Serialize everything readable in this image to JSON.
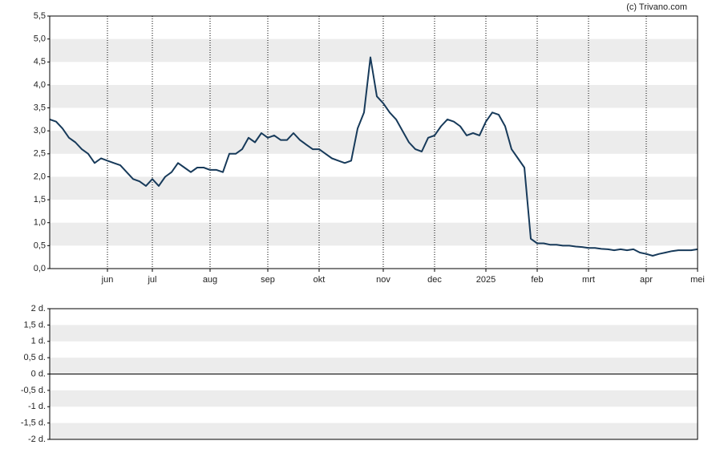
{
  "chart_data": [
    {
      "type": "line",
      "source": "(c) Trivano.com",
      "categories": [
        null,
        null,
        null,
        null,
        null,
        null,
        null,
        null,
        null,
        "jun",
        null,
        null,
        null,
        null,
        null,
        null,
        "jul",
        null,
        null,
        null,
        null,
        null,
        null,
        null,
        null,
        "aug",
        null,
        null,
        null,
        null,
        null,
        null,
        null,
        null,
        "sep",
        null,
        null,
        null,
        null,
        null,
        null,
        null,
        "okt",
        null,
        null,
        null,
        null,
        null,
        null,
        null,
        null,
        null,
        "nov",
        null,
        null,
        null,
        null,
        null,
        null,
        null,
        "dec",
        null,
        null,
        null,
        null,
        null,
        null,
        null,
        "2025",
        null,
        null,
        null,
        null,
        null,
        null,
        null,
        "feb",
        null,
        null,
        null,
        null,
        null,
        null,
        null,
        "mrt",
        null,
        null,
        null,
        null,
        null,
        null,
        null,
        null,
        "apr",
        null,
        null,
        null,
        null,
        null,
        null,
        null,
        "mei"
      ],
      "series": [
        {
          "color": "#173a5a",
          "values": [
            3.25,
            3.2,
            3.05,
            2.85,
            2.75,
            2.6,
            2.5,
            2.3,
            2.4,
            2.35,
            2.3,
            2.25,
            2.1,
            1.95,
            1.9,
            1.8,
            1.95,
            1.8,
            2.0,
            2.1,
            2.3,
            2.2,
            2.1,
            2.2,
            2.2,
            2.15,
            2.15,
            2.1,
            2.5,
            2.5,
            2.6,
            2.85,
            2.75,
            2.95,
            2.85,
            2.9,
            2.8,
            2.8,
            2.95,
            2.8,
            2.7,
            2.6,
            2.6,
            2.5,
            2.4,
            2.35,
            2.3,
            2.35,
            3.05,
            3.4,
            4.6,
            3.75,
            3.6,
            3.4,
            3.25,
            3.0,
            2.75,
            2.6,
            2.55,
            2.85,
            2.9,
            3.1,
            3.25,
            3.2,
            3.1,
            2.9,
            2.95,
            2.9,
            3.2,
            3.4,
            3.35,
            3.1,
            2.6,
            2.4,
            2.2,
            0.65,
            0.55,
            0.55,
            0.52,
            0.52,
            0.5,
            0.5,
            0.48,
            0.47,
            0.45,
            0.45,
            0.43,
            0.42,
            0.4,
            0.42,
            0.4,
            0.42,
            0.35,
            0.32,
            0.28,
            0.32,
            0.35,
            0.38,
            0.4,
            0.4,
            0.4,
            0.42
          ]
        }
      ],
      "ylim": [
        0,
        5.5
      ],
      "yticks": [
        {
          "value": 0,
          "label": "0,0"
        },
        {
          "value": 0.5,
          "label": "0,5"
        },
        {
          "value": 1,
          "label": "1,0"
        },
        {
          "value": 1.5,
          "label": "1,5"
        },
        {
          "value": 2,
          "label": "2,0"
        },
        {
          "value": 2.5,
          "label": "2,5"
        },
        {
          "value": 3,
          "label": "3,0"
        },
        {
          "value": 3.5,
          "label": "3,5"
        },
        {
          "value": 4,
          "label": "4,0"
        },
        {
          "value": 4.5,
          "label": "4,5"
        },
        {
          "value": 5,
          "label": "5,0"
        },
        {
          "value": 5.5,
          "label": "5,5"
        }
      ],
      "grid": true
    },
    {
      "type": "bar",
      "ylim": [
        -2,
        2
      ],
      "yticks": [
        {
          "value": -2,
          "label": "-2 d."
        },
        {
          "value": -1.5,
          "label": "-1,5 d."
        },
        {
          "value": -1,
          "label": "-1 d."
        },
        {
          "value": -0.5,
          "label": "-0,5 d."
        },
        {
          "value": 0,
          "label": "0 d."
        },
        {
          "value": 0.5,
          "label": "0,5 d."
        },
        {
          "value": 1,
          "label": "1 d."
        },
        {
          "value": 1.5,
          "label": "1,5 d."
        },
        {
          "value": 2,
          "label": "2 d."
        }
      ],
      "grid": true
    }
  ]
}
